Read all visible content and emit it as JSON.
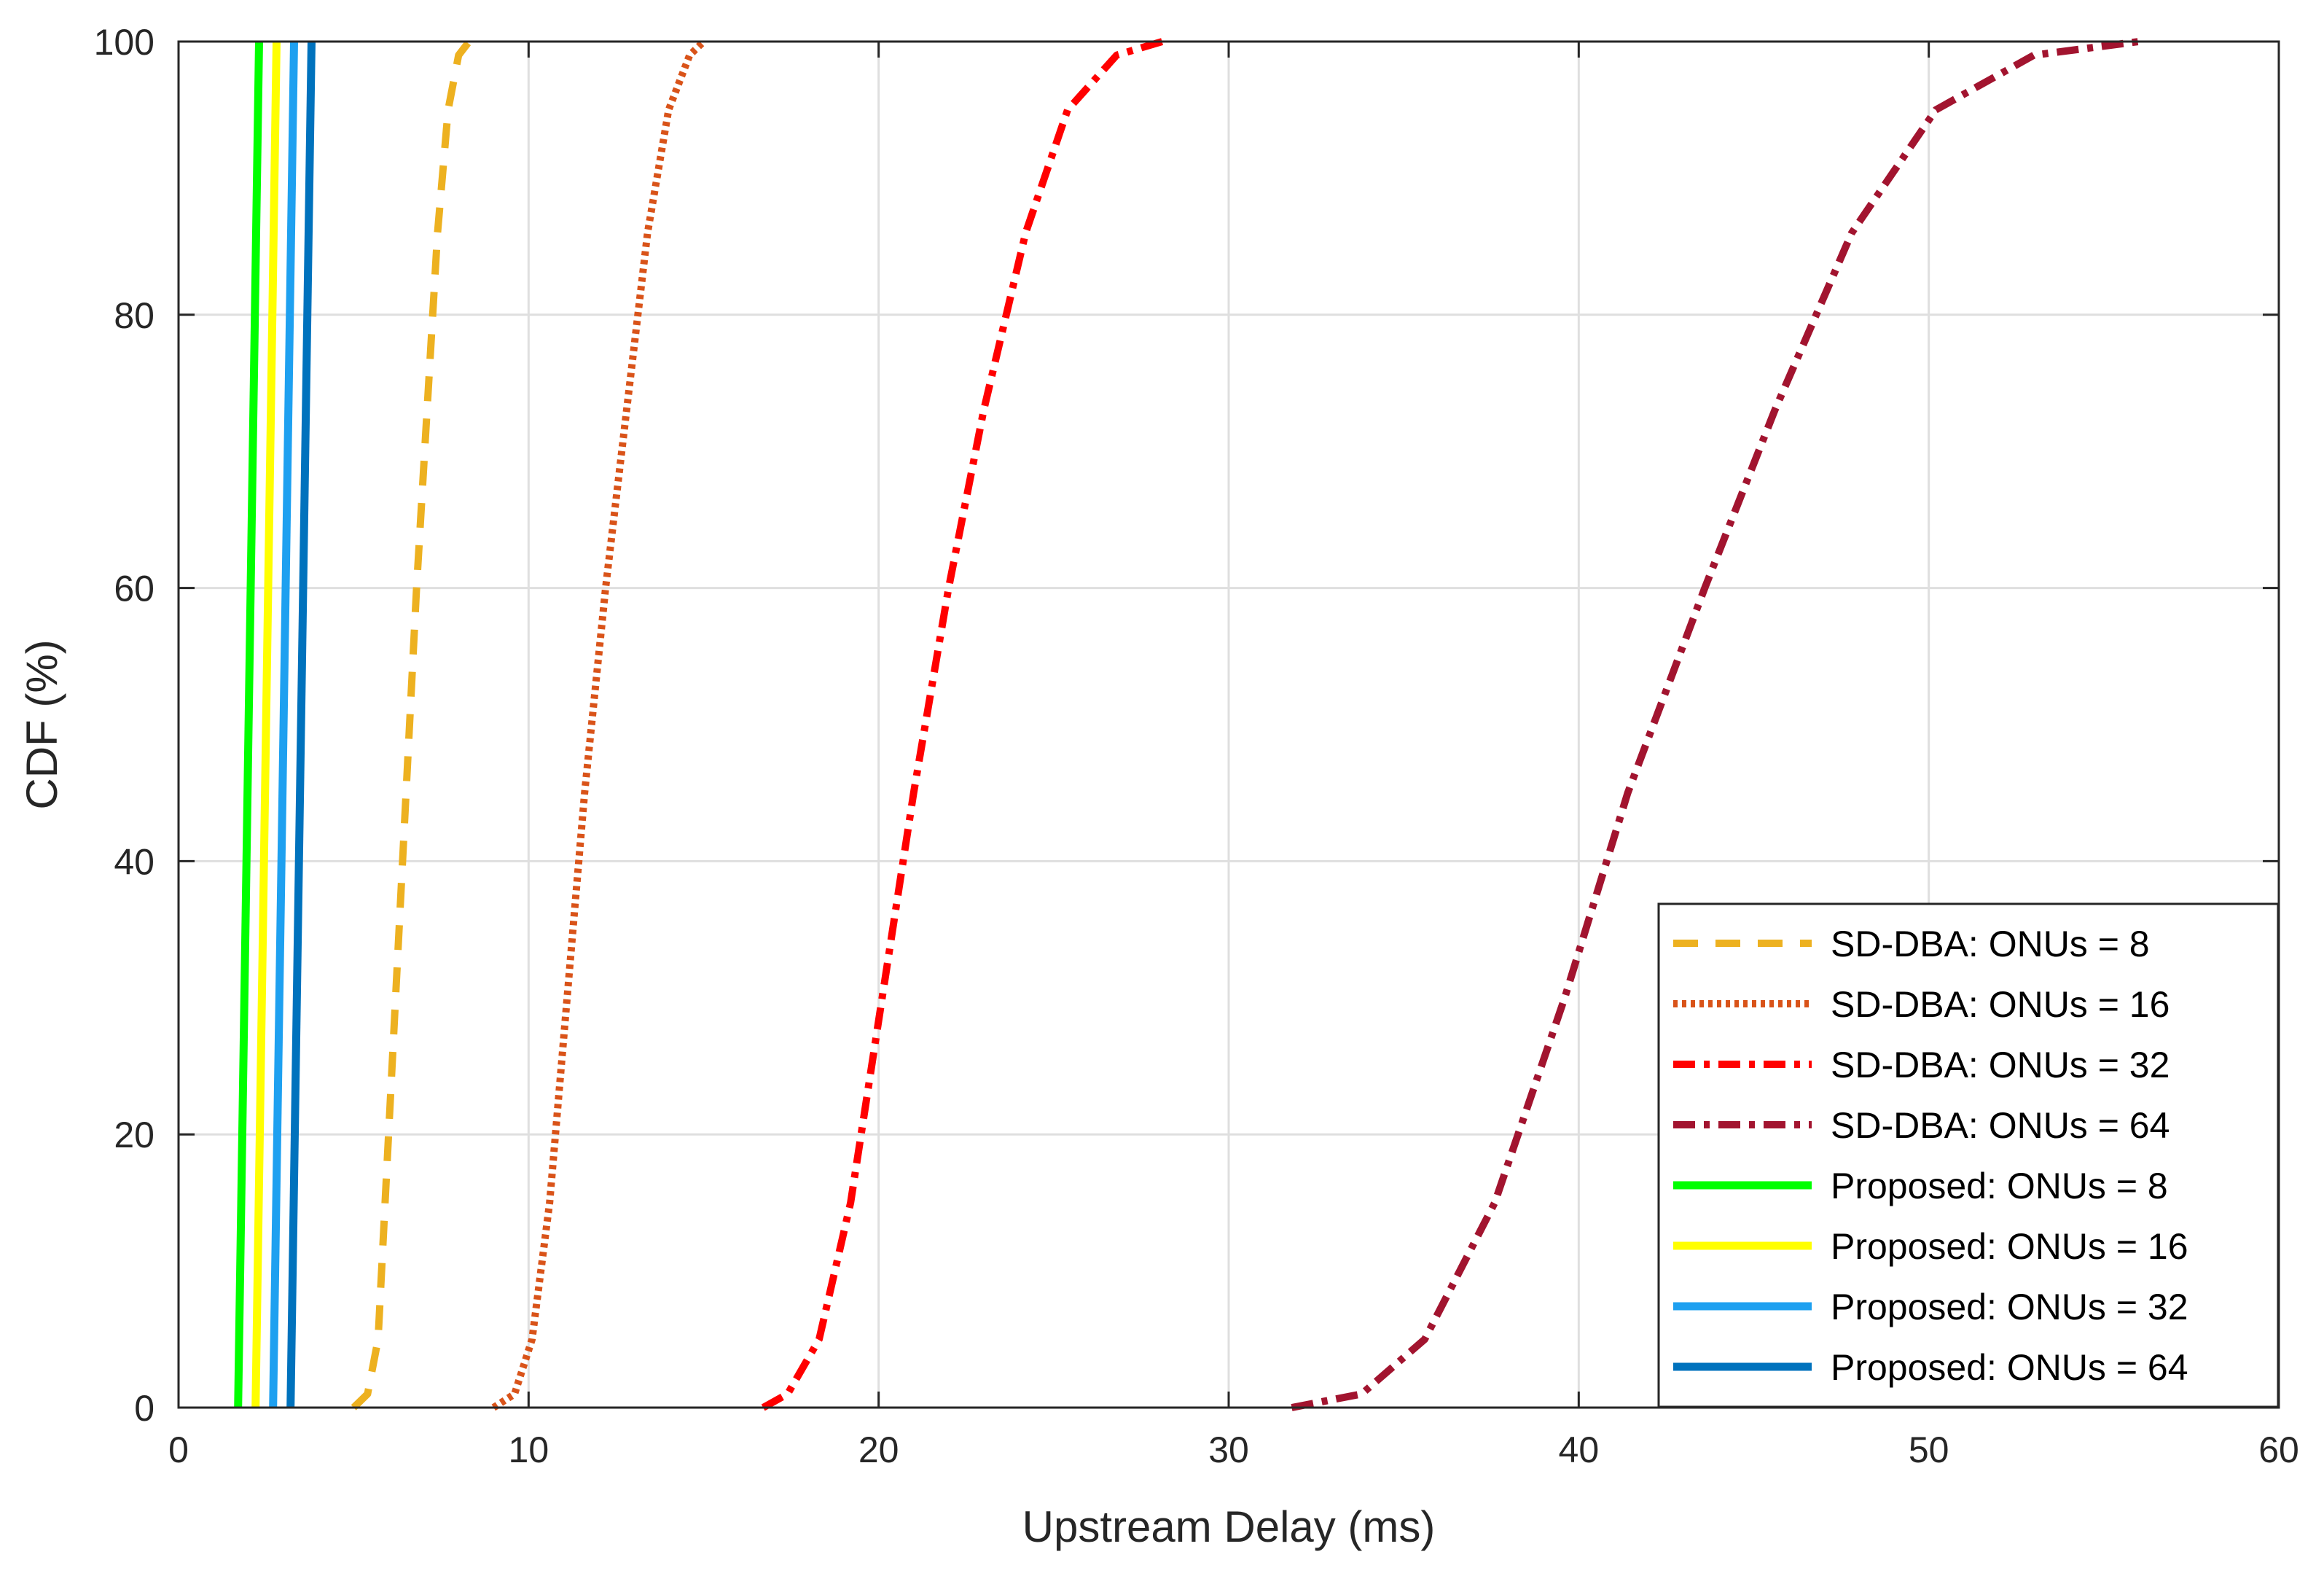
{
  "chart_data": {
    "type": "line",
    "title": "",
    "xlabel": "Upstream Delay (ms)",
    "ylabel": "CDF (%)",
    "xlim": [
      0,
      60
    ],
    "ylim": [
      0,
      100
    ],
    "xticks": [
      "0",
      "10",
      "20",
      "30",
      "40",
      "50",
      "60"
    ],
    "yticks": [
      "0",
      "20",
      "40",
      "60",
      "80",
      "100"
    ],
    "grid": true,
    "legend_position": "bottom-right",
    "series": [
      {
        "name": "SD-DBA: ONUs = 8",
        "color": "#EDB120",
        "style": "dashed",
        "x": [
          5.0,
          5.4,
          5.7,
          5.9,
          6.2,
          6.5,
          6.8,
          7.1,
          7.4,
          7.7,
          8.0,
          8.3
        ],
        "y": [
          0,
          1,
          5,
          15,
          30,
          45,
          60,
          73,
          86,
          95,
          99,
          100
        ]
      },
      {
        "name": "SD-DBA: ONUs = 16",
        "color": "#D95319",
        "style": "dotted",
        "x": [
          9.0,
          9.6,
          10.1,
          10.6,
          11.1,
          11.6,
          12.2,
          12.8,
          13.4,
          14.0,
          14.6,
          15.0
        ],
        "y": [
          0,
          1,
          5,
          15,
          30,
          45,
          60,
          73,
          86,
          95,
          99,
          100
        ]
      },
      {
        "name": "SD-DBA: ONUs = 32",
        "color": "#FF0000",
        "style": "dashdot",
        "x": [
          16.7,
          17.4,
          18.3,
          19.2,
          20.1,
          21.0,
          22.0,
          23.0,
          24.2,
          25.4,
          26.8,
          28.1
        ],
        "y": [
          0,
          1,
          5,
          15,
          30,
          45,
          60,
          73,
          86,
          95,
          99,
          100
        ]
      },
      {
        "name": "SD-DBA: ONUs = 64",
        "color": "#A2142F",
        "style": "dashdot",
        "x": [
          31.8,
          33.8,
          35.6,
          37.6,
          39.6,
          41.4,
          43.6,
          45.6,
          47.8,
          50.2,
          53.0,
          56.0
        ],
        "y": [
          0,
          1,
          5,
          15,
          30,
          45,
          60,
          73,
          86,
          95,
          99,
          100
        ]
      },
      {
        "name": "Proposed: ONUs = 8",
        "color": "#00FF00",
        "style": "solid",
        "x": [
          1.7,
          2.3
        ],
        "y": [
          0,
          100
        ]
      },
      {
        "name": "Proposed: ONUs = 16",
        "color": "#FFFF00",
        "style": "solid",
        "x": [
          2.2,
          2.8
        ],
        "y": [
          0,
          100
        ]
      },
      {
        "name": "Proposed: ONUs = 32",
        "color": "#1EA0F0",
        "style": "solid",
        "x": [
          2.7,
          3.3
        ],
        "y": [
          0,
          100
        ]
      },
      {
        "name": "Proposed: ONUs = 64",
        "color": "#0072BD",
        "style": "solid",
        "x": [
          3.2,
          3.8
        ],
        "y": [
          0,
          100
        ]
      }
    ]
  }
}
